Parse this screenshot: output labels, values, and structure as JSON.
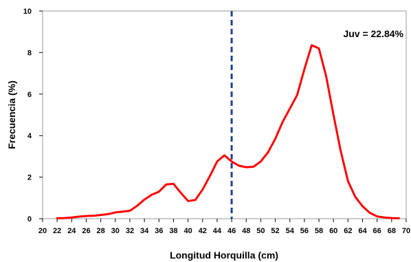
{
  "chart_data": {
    "type": "line",
    "title": "",
    "xlabel": "Longitud Horquilla (cm)",
    "ylabel": "Frecuencia (%)",
    "xlim": [
      20,
      70
    ],
    "ylim": [
      0,
      10
    ],
    "x_ticks": [
      20,
      22,
      24,
      26,
      28,
      30,
      32,
      34,
      36,
      38,
      40,
      42,
      44,
      46,
      48,
      50,
      52,
      54,
      56,
      58,
      60,
      62,
      64,
      66,
      68,
      70
    ],
    "y_ticks": [
      0,
      2,
      4,
      6,
      8,
      10
    ],
    "grid": false,
    "legend": "none",
    "series": [
      {
        "color": "#ff0000",
        "x": [
          22,
          23,
          24,
          25,
          26,
          27,
          28,
          29,
          30,
          31,
          32,
          33,
          34,
          35,
          36,
          37,
          38,
          39,
          40,
          41,
          42,
          43,
          44,
          45,
          46,
          47,
          48,
          49,
          50,
          51,
          52,
          53,
          54,
          55,
          56,
          57,
          58,
          59,
          60,
          61,
          62,
          63,
          64,
          65,
          66,
          67,
          68,
          69
        ],
        "values": [
          0.02,
          0.03,
          0.06,
          0.1,
          0.13,
          0.14,
          0.18,
          0.22,
          0.3,
          0.34,
          0.38,
          0.62,
          0.92,
          1.15,
          1.3,
          1.65,
          1.68,
          1.25,
          0.85,
          0.9,
          1.4,
          2.05,
          2.75,
          3.05,
          2.75,
          2.55,
          2.48,
          2.5,
          2.75,
          3.2,
          3.85,
          4.65,
          5.3,
          5.95,
          7.2,
          8.35,
          8.2,
          6.85,
          5.0,
          3.25,
          1.8,
          1.05,
          0.6,
          0.28,
          0.11,
          0.06,
          0.03,
          0.02
        ]
      }
    ],
    "reference_line": {
      "x": 46,
      "color": "#1f3f8f",
      "style": "dashed"
    },
    "annotations": [
      {
        "text": "Juv = 22.84%"
      }
    ]
  }
}
